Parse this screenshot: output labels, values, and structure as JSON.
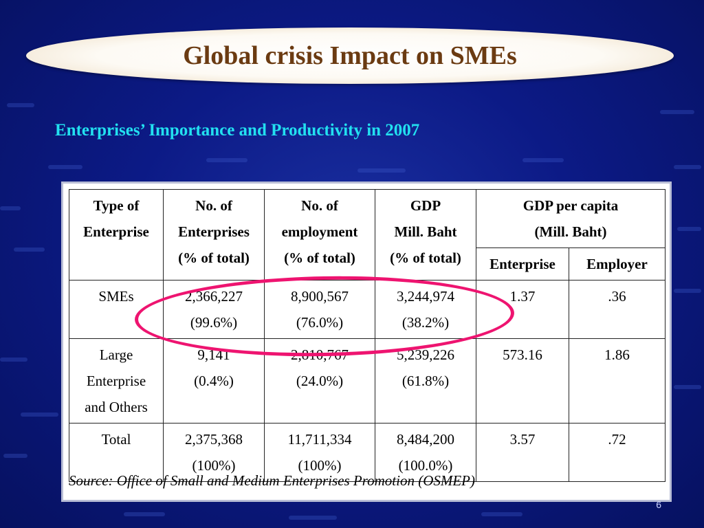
{
  "title": "Global crisis Impact on SMEs",
  "subtitle": "Enterprises’ Importance and Productivity in 2007",
  "table": {
    "headers": {
      "type_of_enterprise": [
        "Type of",
        "Enterprise"
      ],
      "no_enterprises": [
        "No. of",
        "Enterprises",
        "(% of total)"
      ],
      "no_employment": [
        "No. of",
        "employment",
        "(% of total)"
      ],
      "gdp": [
        "GDP",
        "Mill. Baht",
        "(% of total)"
      ],
      "gdp_per_capita": [
        "GDP per capita",
        "(Mill. Baht)"
      ],
      "gdp_per_capita_sub": [
        "Enterprise",
        "Employer"
      ]
    },
    "rows": [
      {
        "type": [
          "SMEs"
        ],
        "enterprises": [
          "2,366,227",
          "(99.6%)"
        ],
        "employment": [
          "8,900,567",
          "(76.0%)"
        ],
        "gdp": [
          "3,244,974",
          "(38.2%)"
        ],
        "per_enterprise": "1.37",
        "per_employer": ".36"
      },
      {
        "type": [
          "Large",
          "Enterprise",
          "and Others"
        ],
        "enterprises": [
          "9,141",
          "(0.4%)"
        ],
        "employment": [
          "2,810,767",
          "(24.0%)"
        ],
        "gdp": [
          "5,239,226",
          "(61.8%)"
        ],
        "per_enterprise": "573.16",
        "per_employer": "1.86"
      },
      {
        "type": [
          "Total"
        ],
        "enterprises": [
          "2,375,368",
          "(100%)"
        ],
        "employment": [
          "11,711,334",
          "(100%)"
        ],
        "gdp": [
          "8,484,200",
          "(100.0%)"
        ],
        "per_enterprise": "3.57",
        "per_employer": ".72"
      }
    ],
    "source": "Source: Office of Small and Medium Enterprises Promotion (OSMEP)"
  },
  "page_number": "6",
  "colors": {
    "background": "#0c1a86",
    "title_text": "#6b3b12",
    "subtitle_text": "#22e0f0",
    "highlight_ellipse": "#ee1470"
  }
}
